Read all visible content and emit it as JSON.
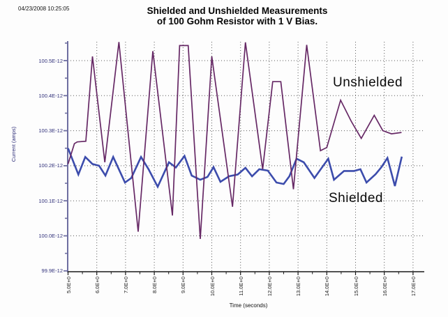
{
  "header": {
    "timestamp": "04/23/2008 10:25:05"
  },
  "chart_data": {
    "type": "line",
    "title": "Shielded and Unshielded Measurements",
    "subtitle": "of 100 Gohm Resistor with 1 V Bias.",
    "xlabel": "Time (seconds)",
    "ylabel": "Current (amps)",
    "value_unit": "amps, values in 1E-12",
    "xlim": [
      5.0,
      17.2
    ],
    "ylim": [
      99.9,
      100.555
    ],
    "grid": "dotted",
    "grid_color": "#5a5a5a",
    "x_axis_color": "#1a1a1a",
    "y_axis_color": "#6e6ea0",
    "x_ticks": [
      {
        "value": 5,
        "label": "5.0E+0"
      },
      {
        "value": 6,
        "label": "6.0E+0"
      },
      {
        "value": 7,
        "label": "7.0E+0"
      },
      {
        "value": 8,
        "label": "8.0E+0"
      },
      {
        "value": 9,
        "label": "9.0E+0"
      },
      {
        "value": 10,
        "label": "10.0E+0"
      },
      {
        "value": 11,
        "label": "11.0E+0"
      },
      {
        "value": 12,
        "label": "12.0E+0"
      },
      {
        "value": 13,
        "label": "13.0E+0"
      },
      {
        "value": 14,
        "label": "14.0E+0"
      },
      {
        "value": 15,
        "label": "15.0E+0"
      },
      {
        "value": 16,
        "label": "16.0E+0"
      },
      {
        "value": 17,
        "label": "17.0E+0"
      }
    ],
    "y_ticks": [
      {
        "value": 100.5,
        "label": "100.5E-12"
      },
      {
        "value": 100.4,
        "label": "100.4E-12"
      },
      {
        "value": 100.3,
        "label": "100.3E-12"
      },
      {
        "value": 100.2,
        "label": "100.2E-12"
      },
      {
        "value": 100.1,
        "label": "100.1E-12"
      },
      {
        "value": 100.0,
        "label": "100.0E-12"
      },
      {
        "value": 99.9,
        "label": "99.9E-12"
      }
    ],
    "x_minor_step": 0.5,
    "y_minor_step": 0.05,
    "series": [
      {
        "name": "Unshielded",
        "color": "#662865",
        "stroke_width": 1.7,
        "points": [
          [
            5.0,
            100.205
          ],
          [
            5.22,
            100.263
          ],
          [
            5.32,
            100.268
          ],
          [
            5.62,
            100.27
          ],
          [
            5.85,
            100.512
          ],
          [
            6.28,
            100.21
          ],
          [
            6.77,
            100.553
          ],
          [
            7.44,
            100.012
          ],
          [
            7.95,
            100.527
          ],
          [
            8.63,
            100.058
          ],
          [
            8.88,
            100.543
          ],
          [
            9.18,
            100.543
          ],
          [
            9.6,
            99.991
          ],
          [
            10.0,
            100.512
          ],
          [
            10.72,
            100.083
          ],
          [
            11.17,
            100.552
          ],
          [
            11.77,
            100.19
          ],
          [
            12.12,
            100.44
          ],
          [
            12.4,
            100.44
          ],
          [
            12.84,
            100.133
          ],
          [
            13.3,
            100.545
          ],
          [
            13.78,
            100.243
          ],
          [
            14.0,
            100.252
          ],
          [
            14.48,
            100.387
          ],
          [
            14.85,
            100.327
          ],
          [
            15.2,
            100.278
          ],
          [
            15.65,
            100.344
          ],
          [
            15.95,
            100.3
          ],
          [
            16.25,
            100.291
          ],
          [
            16.6,
            100.295
          ]
        ]
      },
      {
        "name": "Shielded",
        "color": "#3c4cac",
        "stroke_width": 2.6,
        "points": [
          [
            5.0,
            100.25
          ],
          [
            5.36,
            100.175
          ],
          [
            5.6,
            100.225
          ],
          [
            5.85,
            100.205
          ],
          [
            6.08,
            100.2
          ],
          [
            6.3,
            100.172
          ],
          [
            6.57,
            100.225
          ],
          [
            6.98,
            100.152
          ],
          [
            7.2,
            100.165
          ],
          [
            7.54,
            100.225
          ],
          [
            7.8,
            100.19
          ],
          [
            8.12,
            100.14
          ],
          [
            8.51,
            100.21
          ],
          [
            8.75,
            100.195
          ],
          [
            9.05,
            100.228
          ],
          [
            9.3,
            100.172
          ],
          [
            9.6,
            100.16
          ],
          [
            9.85,
            100.168
          ],
          [
            10.06,
            100.196
          ],
          [
            10.3,
            100.154
          ],
          [
            10.6,
            100.17
          ],
          [
            10.9,
            100.175
          ],
          [
            11.17,
            100.194
          ],
          [
            11.4,
            100.17
          ],
          [
            11.65,
            100.19
          ],
          [
            11.95,
            100.186
          ],
          [
            12.25,
            100.152
          ],
          [
            12.5,
            100.148
          ],
          [
            12.7,
            100.17
          ],
          [
            12.95,
            100.22
          ],
          [
            13.2,
            100.21
          ],
          [
            13.57,
            100.165
          ],
          [
            14.05,
            100.22
          ],
          [
            14.25,
            100.16
          ],
          [
            14.6,
            100.185
          ],
          [
            14.95,
            100.185
          ],
          [
            15.17,
            100.19
          ],
          [
            15.38,
            100.152
          ],
          [
            15.7,
            100.176
          ],
          [
            15.9,
            100.196
          ],
          [
            16.11,
            100.222
          ],
          [
            16.37,
            100.142
          ],
          [
            16.61,
            100.226
          ]
        ]
      }
    ],
    "annotations": [
      {
        "text": "Unshielded"
      },
      {
        "text": "Shielded"
      }
    ],
    "legend_position": "none"
  }
}
